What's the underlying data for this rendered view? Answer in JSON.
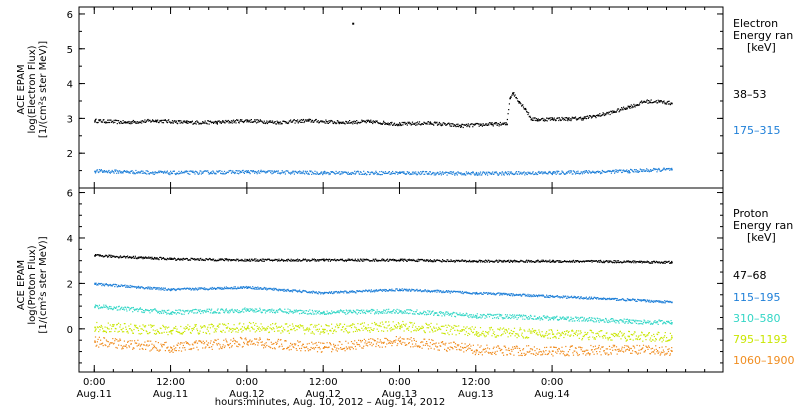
{
  "chart_data": [
    {
      "type": "scatter",
      "panel": "electron",
      "ylabel_lines": [
        "ACE EPAM",
        "log(Electron Flux)",
        "[1/(cm²s ster MeV)]"
      ],
      "ylim": [
        1,
        6.2
      ],
      "yticks": [
        2,
        3,
        4,
        5,
        6
      ],
      "legend_title_lines": [
        "Electron",
        "Energy ran",
        "[keV]"
      ],
      "series": [
        {
          "name": "38–53",
          "color": "#000000",
          "x": [
            0,
            0.2,
            0.4,
            0.6,
            0.8,
            1.0,
            1.2,
            1.4,
            1.6,
            1.8,
            2.0,
            2.2,
            2.4,
            2.6,
            2.7,
            2.72,
            2.74,
            2.78,
            2.82,
            2.86,
            2.9,
            3.0,
            3.1,
            3.2,
            3.3,
            3.4,
            3.5,
            3.55,
            3.6,
            3.7,
            3.78
          ],
          "y": [
            2.95,
            2.9,
            2.95,
            2.9,
            2.9,
            2.95,
            2.9,
            2.95,
            2.9,
            2.92,
            2.85,
            2.88,
            2.8,
            2.85,
            2.85,
            3.6,
            3.75,
            3.5,
            3.3,
            3.0,
            2.98,
            3.0,
            3.0,
            3.02,
            3.1,
            3.2,
            3.35,
            3.4,
            3.5,
            3.5,
            3.45
          ],
          "outliers": [
            {
              "x": 1.69,
              "y": 5.75
            }
          ]
        },
        {
          "name": "175–315",
          "color": "#1e7fd8",
          "x": [
            0,
            0.5,
            1.0,
            1.5,
            2.0,
            2.5,
            3.0,
            3.5,
            3.78
          ],
          "y": [
            1.5,
            1.45,
            1.48,
            1.45,
            1.45,
            1.43,
            1.45,
            1.5,
            1.55
          ]
        }
      ]
    },
    {
      "type": "scatter",
      "panel": "proton",
      "ylabel_lines": [
        "ACE EPAM",
        "log(Proton Flux)",
        "[1/(cm²s ster MeV)]"
      ],
      "ylim": [
        -1.9,
        6.2
      ],
      "yticks": [
        0,
        2,
        4,
        6
      ],
      "legend_title_lines": [
        "Proton",
        "Energy ran",
        "[keV]"
      ],
      "series": [
        {
          "name": "47–68",
          "color": "#000000",
          "x": [
            0,
            0.5,
            1.0,
            1.5,
            2.0,
            2.5,
            3.0,
            3.5,
            3.78
          ],
          "y": [
            3.25,
            3.1,
            3.05,
            3.05,
            3.05,
            3.0,
            3.0,
            2.98,
            2.95
          ]
        },
        {
          "name": "115–195",
          "color": "#1e7fd8",
          "x": [
            0,
            0.5,
            1.0,
            1.5,
            2.0,
            2.5,
            3.0,
            3.5,
            3.78
          ],
          "y": [
            2.0,
            1.75,
            1.85,
            1.6,
            1.75,
            1.6,
            1.45,
            1.3,
            1.2
          ]
        },
        {
          "name": "310–580",
          "color": "#33d6c6",
          "x": [
            0,
            0.5,
            1.0,
            1.5,
            2.0,
            2.5,
            3.0,
            3.5,
            3.78
          ],
          "y": [
            1.0,
            0.75,
            0.85,
            0.75,
            0.8,
            0.6,
            0.5,
            0.35,
            0.3
          ]
        },
        {
          "name": "795–1193",
          "color": "#c9e600",
          "x": [
            0,
            0.5,
            1.0,
            1.5,
            2.0,
            2.5,
            3.0,
            3.5,
            3.78
          ],
          "y": [
            0.1,
            -0.05,
            0.1,
            0.0,
            0.15,
            -0.1,
            -0.2,
            -0.3,
            -0.35
          ]
        },
        {
          "name": "1060–1900",
          "color": "#f08c1e",
          "x": [
            0,
            0.5,
            1.0,
            1.5,
            2.0,
            2.5,
            3.0,
            3.5,
            3.78
          ],
          "y": [
            -0.55,
            -0.8,
            -0.55,
            -0.8,
            -0.5,
            -0.9,
            -0.95,
            -0.9,
            -0.95
          ]
        }
      ]
    }
  ],
  "x_axis": {
    "xlim": [
      -0.1,
      4.12
    ],
    "ticks": [
      {
        "x": 0,
        "time": "0:00",
        "date": "Aug.11"
      },
      {
        "x": 0.5,
        "time": "12:00",
        "date": "Aug.11"
      },
      {
        "x": 1,
        "time": "0:00",
        "date": "Aug.12"
      },
      {
        "x": 1.5,
        "time": "12:00",
        "date": "Aug.12"
      },
      {
        "x": 2,
        "time": "0:00",
        "date": "Aug.13"
      },
      {
        "x": 2.5,
        "time": "12:00",
        "date": "Aug.13"
      },
      {
        "x": 3,
        "time": "0:00",
        "date": "Aug.14"
      }
    ],
    "label": "hours:minutes, Aug. 10, 2012 – Aug. 14, 2012"
  }
}
